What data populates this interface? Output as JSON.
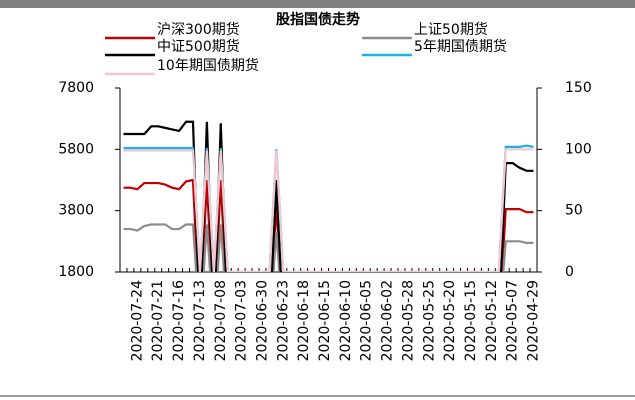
{
  "chart_data": {
    "type": "line",
    "title": "股指国债走势",
    "categories": [
      null,
      null,
      "2020-07-24",
      null,
      null,
      "2020-07-21",
      null,
      null,
      "2020-07-16",
      null,
      null,
      "2020-07-13",
      null,
      null,
      "2020-07-08",
      null,
      null,
      "2020-07-03",
      null,
      null,
      "2020-06-30",
      null,
      null,
      "2020-06-23",
      null,
      null,
      "2020-06-18",
      null,
      null,
      "2020-06-15",
      null,
      null,
      "2020-06-10",
      null,
      null,
      "2020-06-05",
      null,
      null,
      "2020-06-02",
      null,
      null,
      "2020-05-28",
      null,
      null,
      "2020-05-25",
      null,
      null,
      "2020-05-20",
      null,
      null,
      "2020-05-15",
      null,
      null,
      "2020-05-12",
      null,
      null,
      "2020-05-07",
      null,
      null,
      "2020-04-29"
    ],
    "series": [
      {
        "name": "沪深300期货",
        "color": "#c00000",
        "values": [
          4550,
          4550,
          4500,
          4700,
          4700,
          4700,
          4650,
          4550,
          4500,
          4750,
          4800,
          0,
          4800,
          0,
          4800,
          0,
          0,
          0,
          0,
          0,
          0,
          0,
          4000,
          0,
          0,
          0,
          0,
          0,
          0,
          0,
          0,
          0,
          0,
          0,
          0,
          0,
          0,
          0,
          0,
          0,
          0,
          0,
          0,
          0,
          0,
          0,
          0,
          0,
          0,
          0,
          0,
          0,
          0,
          0,
          0,
          3850,
          3850,
          3850,
          3750,
          3750
        ]
      },
      {
        "name": "上证50期货",
        "color": "#8c8c8c",
        "values": [
          3200,
          3200,
          3150,
          3300,
          3350,
          3350,
          3350,
          3200,
          3200,
          3350,
          3350,
          0,
          3350,
          0,
          3350,
          0,
          0,
          0,
          0,
          0,
          0,
          0,
          3100,
          0,
          0,
          0,
          0,
          0,
          0,
          0,
          0,
          0,
          0,
          0,
          0,
          0,
          0,
          0,
          0,
          0,
          0,
          0,
          0,
          0,
          0,
          0,
          0,
          0,
          0,
          0,
          0,
          0,
          0,
          0,
          0,
          2800,
          2800,
          2800,
          2750,
          2750
        ]
      },
      {
        "name": "中证500期货",
        "color": "#000000",
        "values": [
          6300,
          6300,
          6300,
          6300,
          6550,
          6550,
          6500,
          6450,
          6400,
          6700,
          6700,
          0,
          6700,
          0,
          6650,
          0,
          0,
          0,
          0,
          0,
          0,
          0,
          4800,
          0,
          0,
          0,
          0,
          0,
          0,
          0,
          0,
          0,
          0,
          0,
          0,
          0,
          0,
          0,
          0,
          0,
          0,
          0,
          0,
          0,
          0,
          0,
          0,
          0,
          0,
          0,
          0,
          0,
          0,
          0,
          0,
          5350,
          5350,
          5200,
          5100,
          5100
        ]
      },
      {
        "name": "5年期国债期货",
        "color": "#1fb0e6",
        "axis": "y2",
        "values": [
          101,
          101,
          101,
          101,
          101,
          101,
          101,
          101,
          101,
          101,
          101,
          0,
          101,
          0,
          101,
          0,
          0,
          0,
          0,
          0,
          0,
          0,
          100,
          0,
          0,
          0,
          0,
          0,
          0,
          0,
          0,
          0,
          0,
          0,
          0,
          0,
          0,
          0,
          0,
          0,
          0,
          0,
          0,
          0,
          0,
          0,
          0,
          0,
          0,
          0,
          0,
          0,
          0,
          0,
          0,
          102,
          102,
          102,
          103,
          102
        ]
      },
      {
        "name": "10年期国债期货",
        "color": "#f4c7d0",
        "axis": "y2",
        "values": [
          99,
          99,
          99,
          99,
          99,
          99,
          99,
          99,
          99,
          99,
          99,
          0,
          99,
          0,
          99,
          0,
          0,
          0,
          0,
          0,
          0,
          0,
          99,
          0,
          0,
          0,
          0,
          0,
          0,
          0,
          0,
          0,
          0,
          0,
          0,
          0,
          0,
          0,
          0,
          0,
          0,
          0,
          0,
          0,
          0,
          0,
          0,
          0,
          0,
          0,
          0,
          0,
          0,
          0,
          0,
          100,
          100,
          100,
          100,
          100
        ]
      }
    ],
    "ylim": [
      1800,
      7800
    ],
    "yticks": [
      1800,
      3800,
      5800,
      7800
    ],
    "y2lim": [
      0,
      150
    ],
    "y2ticks": [
      0,
      50,
      100,
      150
    ]
  }
}
